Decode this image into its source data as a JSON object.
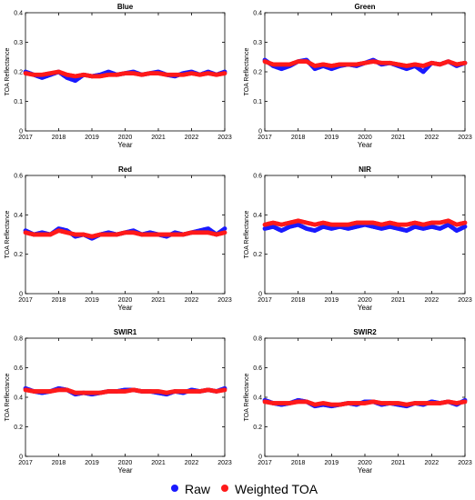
{
  "colors": {
    "raw": "#1a1aff",
    "weighted": "#ff1a1a",
    "axis": "#000000"
  },
  "legend": {
    "raw_label": "Raw",
    "weighted_label": "Weighted TOA"
  },
  "chart_data": [
    {
      "type": "scatter",
      "title": "Blue",
      "xlabel": "Year",
      "ylabel": "TOA Reflectance",
      "xlim": [
        2017,
        2023
      ],
      "ylim": [
        0,
        0.4
      ],
      "xticks": [
        "2017",
        "2018",
        "2019",
        "2020",
        "2021",
        "2022",
        "2023"
      ],
      "yticks": [
        "0",
        "0.1",
        "0.2",
        "0.3",
        "0.4"
      ],
      "grid": false,
      "x": [
        2017.0,
        2017.25,
        2017.5,
        2017.75,
        2018.0,
        2018.25,
        2018.5,
        2018.75,
        2019.0,
        2019.25,
        2019.5,
        2019.75,
        2020.0,
        2020.25,
        2020.5,
        2020.75,
        2021.0,
        2021.25,
        2021.5,
        2021.75,
        2022.0,
        2022.25,
        2022.5,
        2022.75,
        2023.0
      ],
      "series": [
        {
          "name": "Raw",
          "values": [
            0.2,
            0.19,
            0.18,
            0.19,
            0.2,
            0.18,
            0.17,
            0.19,
            0.185,
            0.19,
            0.2,
            0.19,
            0.195,
            0.2,
            0.19,
            0.195,
            0.2,
            0.19,
            0.185,
            0.195,
            0.2,
            0.19,
            0.2,
            0.19,
            0.2
          ]
        },
        {
          "name": "Weighted TOA",
          "values": [
            0.195,
            0.19,
            0.19,
            0.195,
            0.2,
            0.19,
            0.185,
            0.19,
            0.185,
            0.185,
            0.19,
            0.19,
            0.195,
            0.195,
            0.19,
            0.195,
            0.195,
            0.19,
            0.19,
            0.19,
            0.195,
            0.19,
            0.195,
            0.19,
            0.195
          ]
        }
      ]
    },
    {
      "type": "scatter",
      "title": "Green",
      "xlabel": "Year",
      "ylabel": "TOA Reflectance",
      "xlim": [
        2017,
        2023
      ],
      "ylim": [
        0,
        0.4
      ],
      "xticks": [
        "2017",
        "2018",
        "2019",
        "2020",
        "2021",
        "2022",
        "2023"
      ],
      "yticks": [
        "0",
        "0.1",
        "0.2",
        "0.3",
        "0.4"
      ],
      "grid": false,
      "x": [
        2017.0,
        2017.25,
        2017.5,
        2017.75,
        2018.0,
        2018.25,
        2018.5,
        2018.75,
        2019.0,
        2019.25,
        2019.5,
        2019.75,
        2020.0,
        2020.25,
        2020.5,
        2020.75,
        2021.0,
        2021.25,
        2021.5,
        2021.75,
        2022.0,
        2022.25,
        2022.5,
        2022.75,
        2023.0
      ],
      "series": [
        {
          "name": "Raw",
          "values": [
            0.24,
            0.22,
            0.21,
            0.22,
            0.235,
            0.24,
            0.21,
            0.22,
            0.21,
            0.22,
            0.225,
            0.22,
            0.23,
            0.24,
            0.225,
            0.23,
            0.22,
            0.21,
            0.22,
            0.2,
            0.23,
            0.225,
            0.235,
            0.22,
            0.23
          ]
        },
        {
          "name": "Weighted TOA",
          "values": [
            0.235,
            0.225,
            0.225,
            0.225,
            0.235,
            0.235,
            0.22,
            0.225,
            0.22,
            0.225,
            0.225,
            0.225,
            0.23,
            0.235,
            0.23,
            0.23,
            0.225,
            0.22,
            0.225,
            0.22,
            0.23,
            0.225,
            0.235,
            0.225,
            0.23
          ]
        }
      ]
    },
    {
      "type": "scatter",
      "title": "Red",
      "xlabel": "Year",
      "ylabel": "TOA Reflectance",
      "xlim": [
        2017,
        2023
      ],
      "ylim": [
        0,
        0.6
      ],
      "xticks": [
        "2017",
        "2018",
        "2019",
        "2020",
        "2021",
        "2022",
        "2023"
      ],
      "yticks": [
        "0",
        "0.2",
        "0.4",
        "0.6"
      ],
      "grid": false,
      "x": [
        2017.0,
        2017.25,
        2017.5,
        2017.75,
        2018.0,
        2018.25,
        2018.5,
        2018.75,
        2019.0,
        2019.25,
        2019.5,
        2019.75,
        2020.0,
        2020.25,
        2020.5,
        2020.75,
        2021.0,
        2021.25,
        2021.5,
        2021.75,
        2022.0,
        2022.25,
        2022.5,
        2022.75,
        2023.0
      ],
      "series": [
        {
          "name": "Raw",
          "values": [
            0.32,
            0.3,
            0.31,
            0.3,
            0.33,
            0.32,
            0.29,
            0.3,
            0.28,
            0.3,
            0.31,
            0.3,
            0.31,
            0.32,
            0.3,
            0.31,
            0.3,
            0.29,
            0.31,
            0.3,
            0.31,
            0.32,
            0.33,
            0.3,
            0.33
          ]
        },
        {
          "name": "Weighted TOA",
          "values": [
            0.31,
            0.3,
            0.3,
            0.3,
            0.32,
            0.31,
            0.3,
            0.3,
            0.29,
            0.3,
            0.3,
            0.3,
            0.31,
            0.31,
            0.3,
            0.3,
            0.3,
            0.3,
            0.3,
            0.3,
            0.31,
            0.31,
            0.31,
            0.3,
            0.31
          ]
        }
      ]
    },
    {
      "type": "scatter",
      "title": "NIR",
      "xlabel": "Year",
      "ylabel": "TOA Reflectance",
      "xlim": [
        2017,
        2023
      ],
      "ylim": [
        0,
        0.6
      ],
      "xticks": [
        "2017",
        "2018",
        "2019",
        "2020",
        "2021",
        "2022",
        "2023"
      ],
      "yticks": [
        "0",
        "0.2",
        "0.4",
        "0.6"
      ],
      "grid": false,
      "x": [
        2017.0,
        2017.25,
        2017.5,
        2017.75,
        2018.0,
        2018.25,
        2018.5,
        2018.75,
        2019.0,
        2019.25,
        2019.5,
        2019.75,
        2020.0,
        2020.25,
        2020.5,
        2020.75,
        2021.0,
        2021.25,
        2021.5,
        2021.75,
        2022.0,
        2022.25,
        2022.5,
        2022.75,
        2023.0
      ],
      "series": [
        {
          "name": "Raw",
          "values": [
            0.33,
            0.34,
            0.32,
            0.34,
            0.35,
            0.33,
            0.32,
            0.34,
            0.33,
            0.34,
            0.33,
            0.34,
            0.35,
            0.34,
            0.33,
            0.34,
            0.33,
            0.32,
            0.34,
            0.33,
            0.34,
            0.33,
            0.35,
            0.32,
            0.34
          ]
        },
        {
          "name": "Weighted TOA",
          "values": [
            0.35,
            0.36,
            0.35,
            0.36,
            0.37,
            0.36,
            0.35,
            0.36,
            0.35,
            0.35,
            0.35,
            0.36,
            0.36,
            0.36,
            0.35,
            0.36,
            0.35,
            0.35,
            0.36,
            0.35,
            0.36,
            0.36,
            0.37,
            0.35,
            0.36
          ]
        }
      ]
    },
    {
      "type": "scatter",
      "title": "SWIR1",
      "xlabel": "Year",
      "ylabel": "TOA Reflectance",
      "xlim": [
        2017,
        2023
      ],
      "ylim": [
        0,
        0.8
      ],
      "xticks": [
        "2017",
        "2018",
        "2019",
        "2020",
        "2021",
        "2022",
        "2023"
      ],
      "yticks": [
        "0",
        "0.2",
        "0.4",
        "0.6",
        "0.8"
      ],
      "grid": false,
      "x": [
        2017.0,
        2017.25,
        2017.5,
        2017.75,
        2018.0,
        2018.25,
        2018.5,
        2018.75,
        2019.0,
        2019.25,
        2019.5,
        2019.75,
        2020.0,
        2020.25,
        2020.5,
        2020.75,
        2021.0,
        2021.25,
        2021.5,
        2021.75,
        2022.0,
        2022.25,
        2022.5,
        2022.75,
        2023.0
      ],
      "series": [
        {
          "name": "Raw",
          "values": [
            0.46,
            0.44,
            0.43,
            0.44,
            0.46,
            0.45,
            0.42,
            0.43,
            0.42,
            0.43,
            0.44,
            0.44,
            0.45,
            0.45,
            0.44,
            0.44,
            0.43,
            0.42,
            0.44,
            0.43,
            0.45,
            0.44,
            0.45,
            0.44,
            0.46
          ]
        },
        {
          "name": "Weighted TOA",
          "values": [
            0.45,
            0.44,
            0.44,
            0.44,
            0.45,
            0.45,
            0.43,
            0.43,
            0.43,
            0.43,
            0.44,
            0.44,
            0.44,
            0.45,
            0.44,
            0.44,
            0.44,
            0.43,
            0.44,
            0.44,
            0.44,
            0.44,
            0.45,
            0.44,
            0.45
          ]
        }
      ]
    },
    {
      "type": "scatter",
      "title": "SWIR2",
      "xlabel": "Year",
      "ylabel": "TOA Reflectance",
      "xlim": [
        2017,
        2023
      ],
      "ylim": [
        0,
        0.8
      ],
      "xticks": [
        "2017",
        "2018",
        "2019",
        "2020",
        "2021",
        "2022",
        "2023"
      ],
      "yticks": [
        "0",
        "0.2",
        "0.4",
        "0.6",
        "0.8"
      ],
      "grid": false,
      "x": [
        2017.0,
        2017.25,
        2017.5,
        2017.75,
        2018.0,
        2018.25,
        2018.5,
        2018.75,
        2019.0,
        2019.25,
        2019.5,
        2019.75,
        2020.0,
        2020.25,
        2020.5,
        2020.75,
        2021.0,
        2021.25,
        2021.5,
        2021.75,
        2022.0,
        2022.25,
        2022.5,
        2022.75,
        2023.0
      ],
      "series": [
        {
          "name": "Raw",
          "values": [
            0.38,
            0.36,
            0.35,
            0.36,
            0.38,
            0.37,
            0.34,
            0.35,
            0.34,
            0.35,
            0.36,
            0.35,
            0.37,
            0.37,
            0.35,
            0.36,
            0.35,
            0.34,
            0.36,
            0.35,
            0.37,
            0.36,
            0.37,
            0.35,
            0.38
          ]
        },
        {
          "name": "Weighted TOA",
          "values": [
            0.37,
            0.36,
            0.36,
            0.36,
            0.37,
            0.37,
            0.35,
            0.36,
            0.35,
            0.35,
            0.36,
            0.36,
            0.36,
            0.37,
            0.36,
            0.36,
            0.36,
            0.35,
            0.36,
            0.36,
            0.36,
            0.36,
            0.37,
            0.36,
            0.37
          ]
        }
      ]
    }
  ]
}
